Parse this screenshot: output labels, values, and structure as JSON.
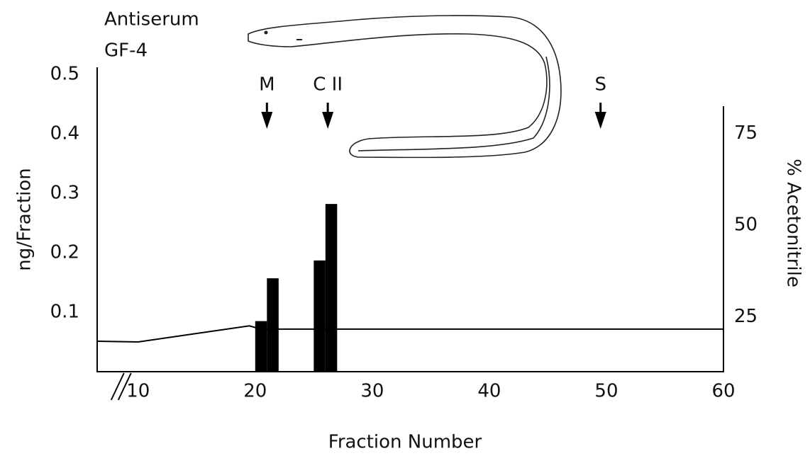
{
  "chart_data": {
    "type": "bar",
    "title_lines": [
      "Antiserum",
      "GF-4"
    ],
    "x_label": "Fraction Number",
    "y_label": "ng/Fraction",
    "y2_label": "% Acetonitrile",
    "xlim": [
      6.5,
      60
    ],
    "xticks": [
      10,
      20,
      30,
      40,
      50,
      60
    ],
    "ylim": [
      0,
      0.5
    ],
    "yticks": [
      0.1,
      0.2,
      0.3,
      0.4,
      0.5
    ],
    "y2lim": [
      10,
      93
    ],
    "y2ticks": [
      25,
      50,
      75
    ],
    "axis_break": 10,
    "series": [
      {
        "type": "bar",
        "color": "#000000",
        "x": [
          20,
          21,
          25,
          26
        ],
        "values": [
          0.085,
          0.157,
          0.187,
          0.282
        ]
      },
      {
        "type": "line",
        "axis": "y2",
        "color": "#000000",
        "x": [
          6.5,
          10,
          19.5,
          20.5,
          60
        ],
        "values": [
          18.3,
          18.1,
          22.5,
          21.6,
          21.6
        ]
      }
    ],
    "markers": [
      {
        "label": "M",
        "x": 21
      },
      {
        "label": "C II",
        "x": 26.2
      },
      {
        "label": "S",
        "x": 49.5
      }
    ]
  }
}
